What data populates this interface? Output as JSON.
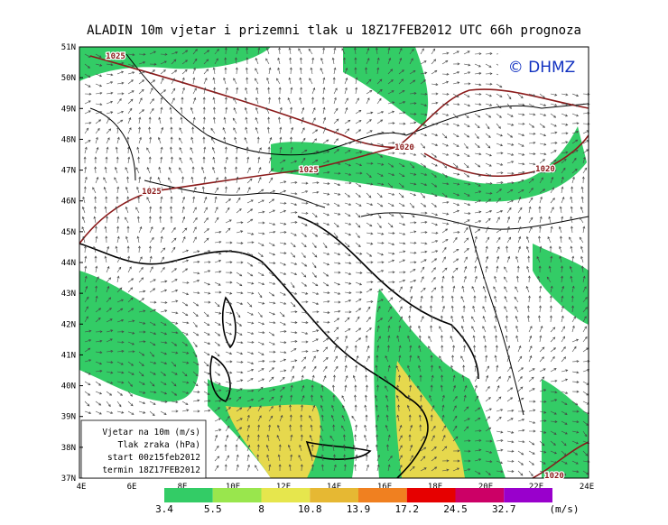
{
  "title": "ALADIN 10m vjetar i prizemni tlak u 18Z17FEB2012 UTC 66h prognoza",
  "logo": "© DHMZ",
  "latitude_labels": [
    "51N",
    "50N",
    "49N",
    "48N",
    "47N",
    "46N",
    "45N",
    "44N",
    "43N",
    "42N",
    "41N",
    "40N",
    "39N",
    "38N",
    "37N"
  ],
  "longitude_labels": [
    "4E",
    "6E",
    "8E",
    "10E",
    "12E",
    "14E",
    "16E",
    "18E",
    "20E",
    "22E",
    "24E"
  ],
  "isobar_labels": [
    "1025",
    "1025",
    "1025",
    "1020",
    "1020",
    "1020"
  ],
  "legend_box": [
    "Vjetar na 10m (m/s)",
    "Tlak zraka (hPa)",
    "start 00z15feb2012",
    "termin 18Z17FEB2012"
  ],
  "colorbar": {
    "labels": [
      "3.4",
      "5.5",
      "8",
      "10.8",
      "13.9",
      "17.2",
      "24.5",
      "32.7"
    ],
    "unit": "(m/s)"
  }
}
